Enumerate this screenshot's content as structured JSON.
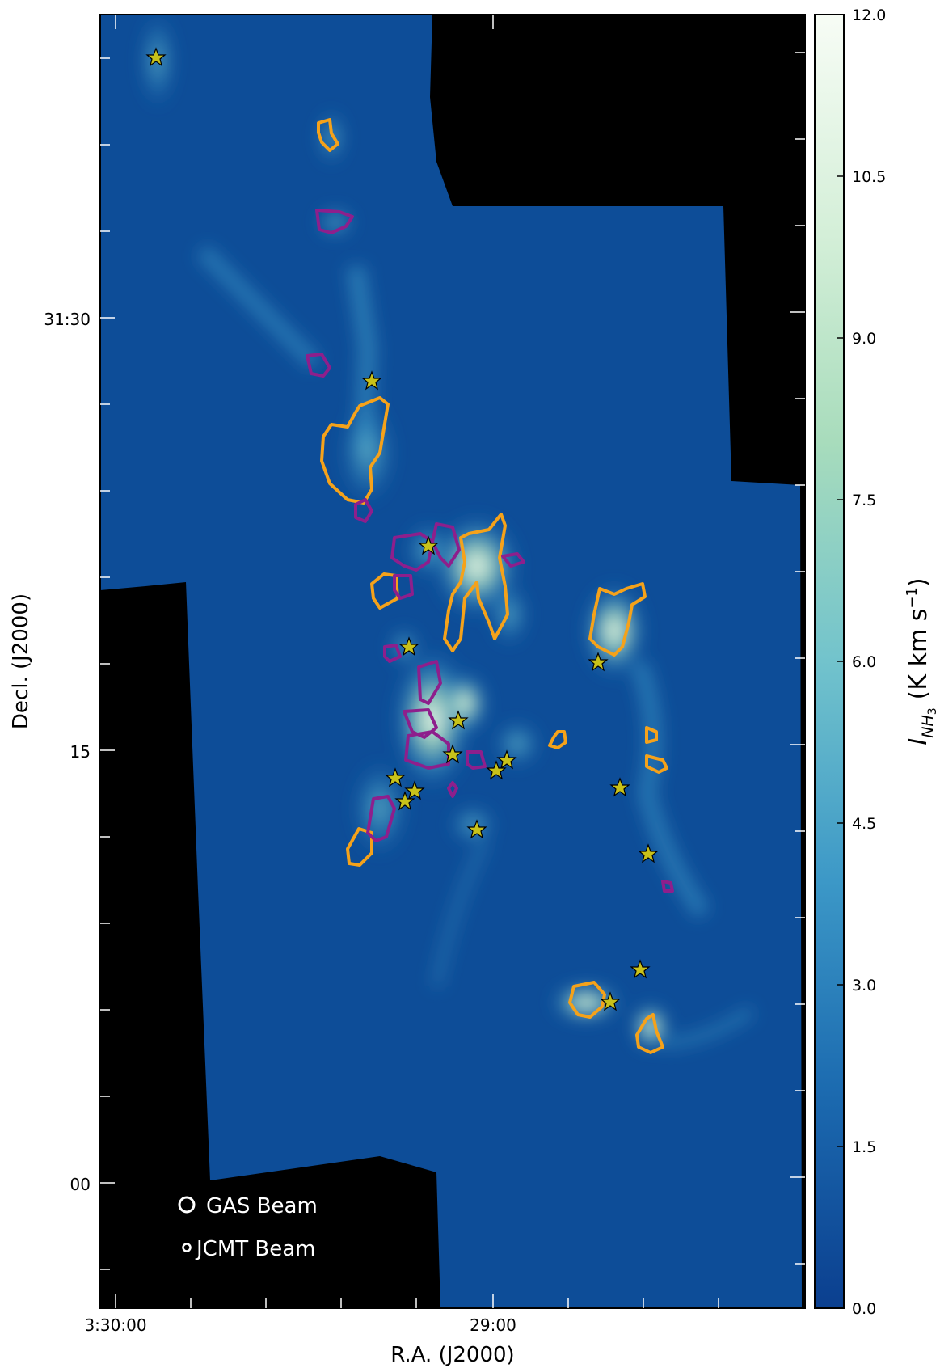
{
  "axes": {
    "xlabel": "R.A. (J2000)",
    "ylabel": "Decl. (J2000)",
    "x_ticks": [
      "3:30:00",
      "29:00"
    ],
    "y_ticks": [
      "31:30",
      "15",
      "00"
    ]
  },
  "colorbar": {
    "label": "I",
    "label_sub": "NH",
    "label_sub2": "3",
    "label_units": "(K km s",
    "label_exp": "−1",
    "label_close": ")",
    "ticks": [
      "12.0",
      "10.5",
      "9.0",
      "7.5",
      "6.0",
      "4.5",
      "3.0",
      "1.5",
      "0.0"
    ],
    "range": [
      0.0,
      12.0
    ],
    "colormap": [
      "#0b3f8f",
      "#1c6bb0",
      "#3c98c7",
      "#72c3cc",
      "#a8dcbc",
      "#d4efd8",
      "#f7fcf5"
    ]
  },
  "legend": {
    "gas_beam": "GAS Beam",
    "jcmt_beam": "JCMT Beam"
  },
  "colors": {
    "background_map": "#0d4d98",
    "masked": "#000000",
    "contour_orange": "#f5a21a",
    "contour_purple": "#8e1f8c",
    "star_fill": "#c8c21a"
  }
}
